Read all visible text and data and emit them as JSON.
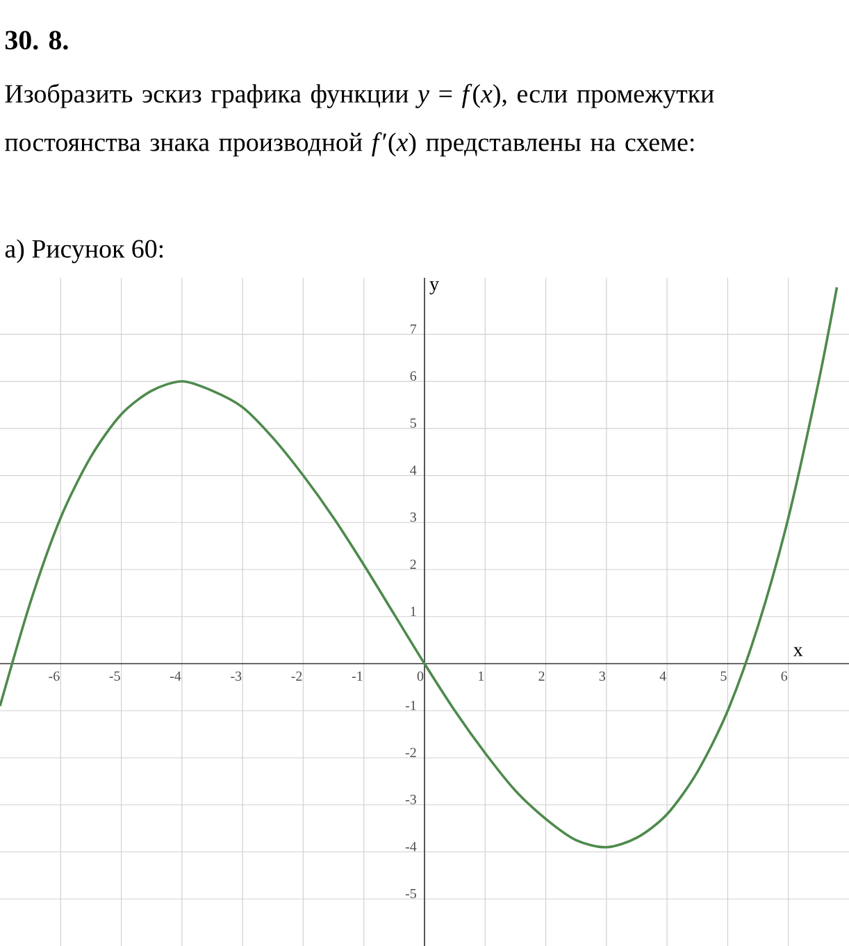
{
  "chart_data": {
    "type": "line",
    "title": "30. 8.",
    "subtitle": "Изобразить эскиз графика функции *y* = *f*(*x*), если промежутки постоянства знака производной *f*′(*x*) представлены на схеме:",
    "annotations": [
      "а) Рисунок 60:"
    ],
    "xlabel": "x",
    "ylabel": "y",
    "x": [
      -7,
      -6.5,
      -6,
      -5.5,
      -5,
      -4.5,
      -4,
      -3.5,
      -3,
      -2.5,
      -2,
      -1.5,
      -1,
      -0.5,
      0,
      0.5,
      1,
      1.5,
      2,
      2.5,
      3,
      3.5,
      4,
      4.5,
      5,
      5.5,
      6,
      6.5,
      6.8
    ],
    "series": [
      {
        "color": "#4e8a4c",
        "values": [
          -0.9,
          1.3,
          3.1,
          4.4,
          5.3,
          5.8,
          6.0,
          5.8,
          5.45,
          4.8,
          4.0,
          3.1,
          2.1,
          1.05,
          0,
          -1.0,
          -1.9,
          -2.7,
          -3.3,
          -3.75,
          -3.9,
          -3.7,
          -3.2,
          -2.3,
          -1.0,
          0.8,
          3.1,
          6.0,
          8.0
        ]
      }
    ],
    "xlim": [
      -7,
      7
    ],
    "ylim": [
      -6,
      8.2
    ],
    "xticks": [
      -6,
      -5,
      -4,
      -3,
      -2,
      -1,
      0,
      1,
      2,
      3,
      4,
      5,
      6
    ],
    "yticks": [
      -5,
      -4,
      -3,
      -2,
      -1,
      1,
      2,
      3,
      4,
      5,
      6,
      7
    ],
    "grid": true
  }
}
